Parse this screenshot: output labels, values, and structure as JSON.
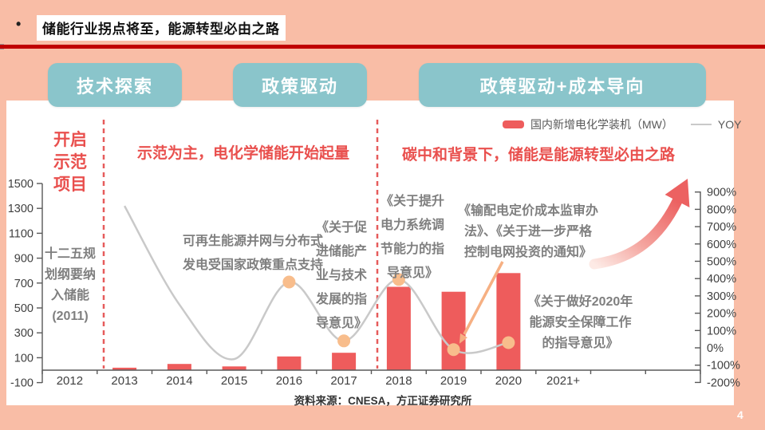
{
  "slide": {
    "bullet": "•",
    "title": "储能行业拐点将至，能源转型必由之路",
    "source": "资料来源：CNESA，方正证券研究所",
    "page_number": "4"
  },
  "phases": {
    "p1": "技术探索",
    "p2": "政策驱动",
    "p3": "政策驱动+成本导向"
  },
  "legend": {
    "bar_label": "国内新增电化学装机（MW）",
    "line_label": "YOY"
  },
  "annotations": {
    "left_title": [
      "开启",
      "示范",
      "项目"
    ],
    "left_note": [
      "十二五规",
      "划纲要纳",
      "入储能",
      "(2011)"
    ],
    "mid_heading": "示范为主，电化学储能开始起量",
    "mid_note": [
      "可再生能源并网与分布式",
      "发电受国家政策重点支持"
    ],
    "mid_policy": [
      "《关于促",
      "进储能产",
      "业与技术",
      "发展的指",
      "导意见》"
    ],
    "right_heading": "碳中和背景下，储能是能源转型必由之路",
    "policy_grid": [
      "《关于提升",
      "电力系统调",
      "节能力的指",
      "导意见》"
    ],
    "policy_pricing": [
      "《输配电定价成本监审办",
      "法》、《关于进一步严格",
      "控制电网投资的通知》"
    ],
    "policy_2020": [
      "《关于做好2020年",
      "能源安全保障工作",
      "的指导意见》"
    ]
  },
  "chart_data": {
    "type": "bar",
    "subtype": "combo-bar-line-dual-axis",
    "categories": [
      "2012",
      "2013",
      "2014",
      "2015",
      "2016",
      "2017",
      "2018",
      "2019",
      "2020",
      "2021+"
    ],
    "series": [
      {
        "name": "国内新增电化学装机（MW）",
        "type": "bar",
        "axis": "left",
        "color": "#ee5c5c",
        "values": [
          0,
          20,
          50,
          30,
          110,
          140,
          670,
          630,
          780,
          null
        ]
      },
      {
        "name": "YOY",
        "type": "line",
        "axis": "right",
        "unit": "%",
        "color": "#c9c9c9",
        "values": [
          null,
          820,
          250,
          -65,
          380,
          40,
          395,
          -10,
          30,
          null
        ]
      }
    ],
    "left_axis": {
      "range": [
        -100,
        1500
      ],
      "ticks": [
        1500,
        1300,
        1100,
        900,
        700,
        500,
        300,
        100,
        -100
      ]
    },
    "right_axis": {
      "range": [
        -200,
        900
      ],
      "unit": "%",
      "ticks": [
        900,
        800,
        700,
        600,
        500,
        400,
        300,
        200,
        100,
        0,
        -100,
        -200
      ]
    },
    "highlight_dot_years": [
      "2016",
      "2017",
      "2018",
      "2019",
      "2020"
    ],
    "highlight_dot_color": "#f8bd8c",
    "phase_dividers_after": [
      "2012",
      "2017"
    ],
    "legend_position": "top-right",
    "grid": false,
    "annotations": [
      "trend-up-arrow",
      "callout-arrow-to-2019-dot"
    ]
  }
}
